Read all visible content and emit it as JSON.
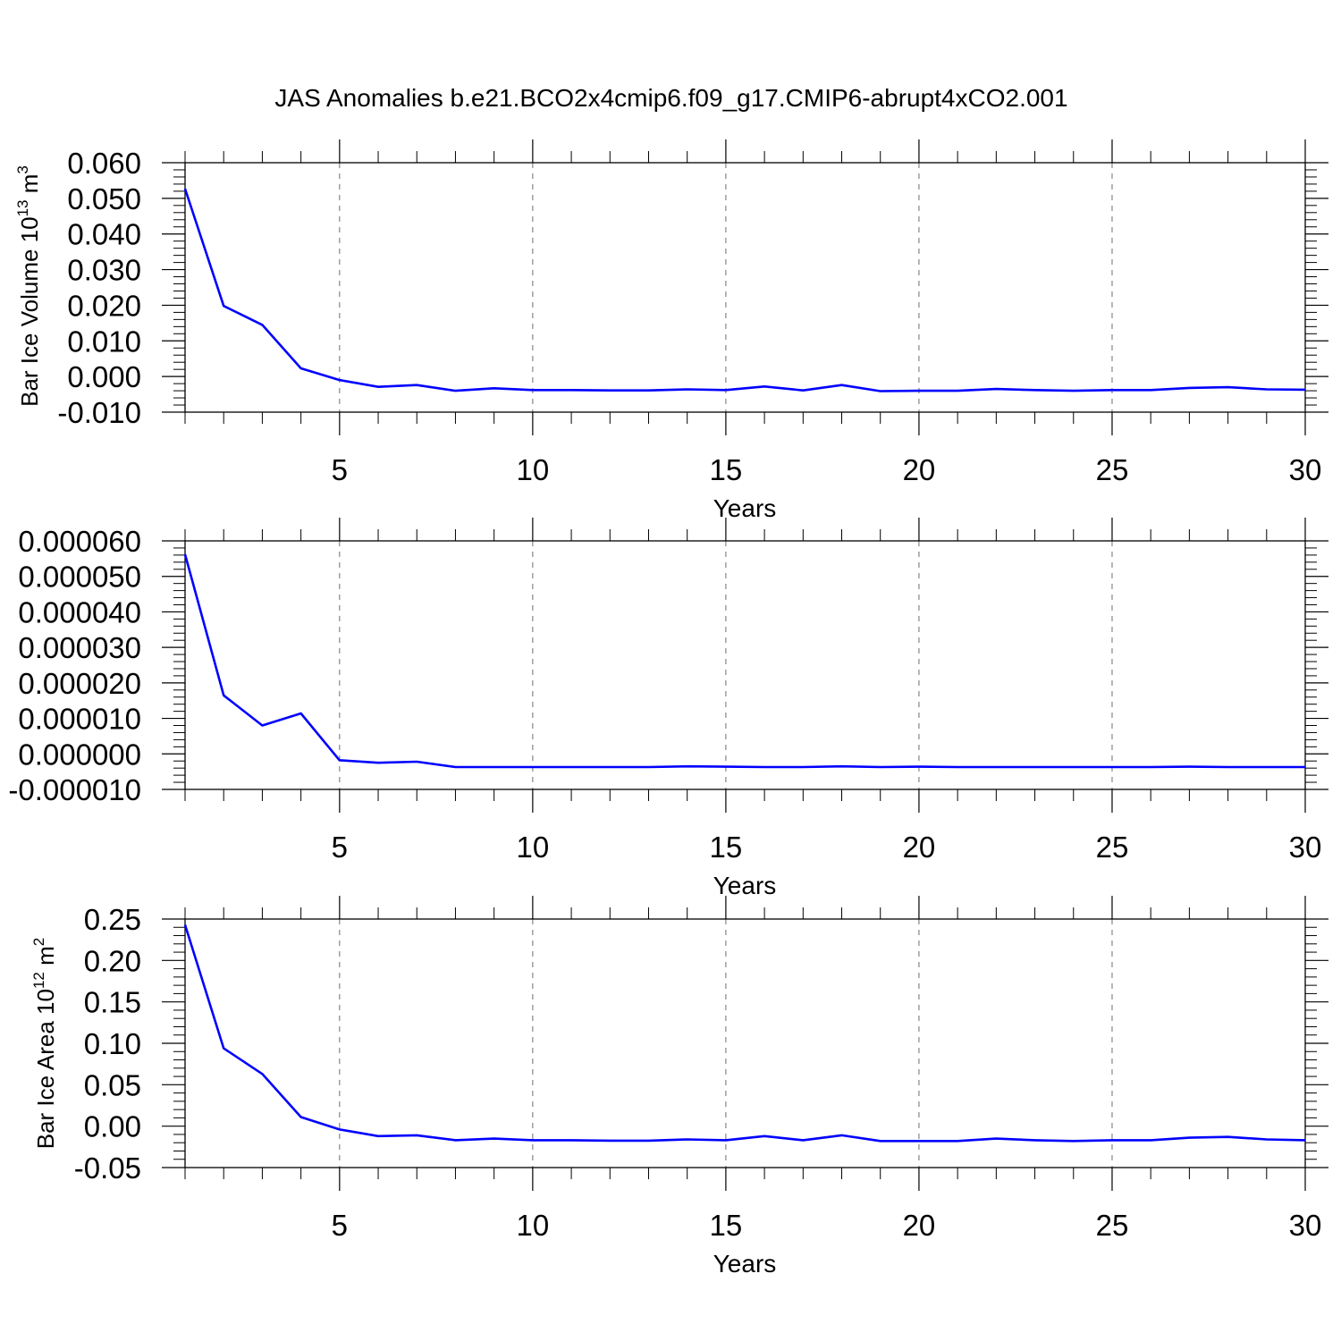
{
  "figure": {
    "title": "JAS Anomalies b.e21.BCO2x4cmip6.f09_g17.CMIP6-abrupt4xCO2.001",
    "line_color": "#0000ff",
    "grid_color": "#6e6e6e"
  },
  "chart_data": [
    {
      "type": "line",
      "ylabel_main": "Bar Ice Volume 10",
      "ylabel_exp": "13",
      "ylabel_unit": " m",
      "ylabel_unit_exp": "3",
      "xlabel": "Years",
      "xlim": [
        1,
        30
      ],
      "ylim": [
        -0.01,
        0.06
      ],
      "x_ticks": [
        5,
        10,
        15,
        20,
        25,
        30
      ],
      "y_ticks": [
        -0.01,
        0.0,
        0.01,
        0.02,
        0.03,
        0.04,
        0.05,
        0.06
      ],
      "y_tick_labels": [
        "-0.010",
        "0.000",
        "0.010",
        "0.020",
        "0.030",
        "0.040",
        "0.050",
        "0.060"
      ],
      "grid": "vertical dashed at major x ticks",
      "series": [
        {
          "x": [
            1,
            2,
            3,
            4,
            5,
            6,
            7,
            8,
            9,
            10,
            11,
            12,
            13,
            14,
            15,
            16,
            17,
            18,
            19,
            20,
            21,
            22,
            23,
            24,
            25,
            26,
            27,
            28,
            29,
            30
          ],
          "values": [
            0.0527,
            0.0198,
            0.0145,
            0.0023,
            -0.001,
            -0.0029,
            -0.0024,
            -0.004,
            -0.0033,
            -0.0038,
            -0.0038,
            -0.0039,
            -0.0039,
            -0.0036,
            -0.0038,
            -0.0028,
            -0.0039,
            -0.0024,
            -0.0041,
            -0.004,
            -0.004,
            -0.0035,
            -0.0038,
            -0.004,
            -0.0038,
            -0.0038,
            -0.0032,
            -0.003,
            -0.0036,
            -0.0037
          ]
        }
      ]
    },
    {
      "type": "line",
      "ylabel_main": "",
      "ylabel_exp": "",
      "ylabel_unit": "",
      "ylabel_unit_exp": "",
      "xlabel": "Years",
      "xlim": [
        1,
        30
      ],
      "ylim": [
        -1e-05,
        6e-05
      ],
      "x_ticks": [
        5,
        10,
        15,
        20,
        25,
        30
      ],
      "y_ticks": [
        -1e-05,
        0.0,
        1e-05,
        2e-05,
        3e-05,
        4e-05,
        5e-05,
        6e-05
      ],
      "y_tick_labels": [
        "-0.000010",
        "0.000000",
        "0.000010",
        "0.000020",
        "0.000030",
        "0.000040",
        "0.000050",
        "0.000060"
      ],
      "grid": "vertical dashed at major x ticks",
      "series": [
        {
          "x": [
            1,
            2,
            3,
            4,
            5,
            6,
            7,
            8,
            9,
            10,
            11,
            12,
            13,
            14,
            15,
            16,
            17,
            18,
            19,
            20,
            21,
            22,
            23,
            24,
            25,
            26,
            27,
            28,
            29,
            30
          ],
          "values": [
            5.62e-05,
            1.65e-05,
            8e-06,
            1.14e-05,
            -1.8e-06,
            -2.5e-06,
            -2.2e-06,
            -3.7e-06,
            -3.7e-06,
            -3.7e-06,
            -3.7e-06,
            -3.7e-06,
            -3.7e-06,
            -3.5e-06,
            -3.6e-06,
            -3.7e-06,
            -3.7e-06,
            -3.5e-06,
            -3.7e-06,
            -3.6e-06,
            -3.7e-06,
            -3.7e-06,
            -3.7e-06,
            -3.7e-06,
            -3.7e-06,
            -3.7e-06,
            -3.6e-06,
            -3.7e-06,
            -3.7e-06,
            -3.7e-06
          ]
        }
      ]
    },
    {
      "type": "line",
      "ylabel_main": "Bar Ice Area 10",
      "ylabel_exp": "12",
      "ylabel_unit": " m",
      "ylabel_unit_exp": "2",
      "xlabel": "Years",
      "xlim": [
        1,
        30
      ],
      "ylim": [
        -0.05,
        0.25
      ],
      "x_ticks": [
        5,
        10,
        15,
        20,
        25,
        30
      ],
      "y_ticks": [
        -0.05,
        0.0,
        0.05,
        0.1,
        0.15,
        0.2,
        0.25
      ],
      "y_tick_labels": [
        "-0.05",
        "0.00",
        "0.05",
        "0.10",
        "0.15",
        "0.20",
        "0.25"
      ],
      "grid": "vertical dashed at major x ticks",
      "series": [
        {
          "x": [
            1,
            2,
            3,
            4,
            5,
            6,
            7,
            8,
            9,
            10,
            11,
            12,
            13,
            14,
            15,
            16,
            17,
            18,
            19,
            20,
            21,
            22,
            23,
            24,
            25,
            26,
            27,
            28,
            29,
            30
          ],
          "values": [
            0.243,
            0.094,
            0.063,
            0.011,
            -0.004,
            -0.012,
            -0.011,
            -0.017,
            -0.015,
            -0.017,
            -0.017,
            -0.0175,
            -0.0175,
            -0.016,
            -0.017,
            -0.012,
            -0.017,
            -0.011,
            -0.018,
            -0.018,
            -0.018,
            -0.015,
            -0.017,
            -0.018,
            -0.017,
            -0.017,
            -0.014,
            -0.013,
            -0.016,
            -0.017
          ]
        }
      ]
    }
  ]
}
